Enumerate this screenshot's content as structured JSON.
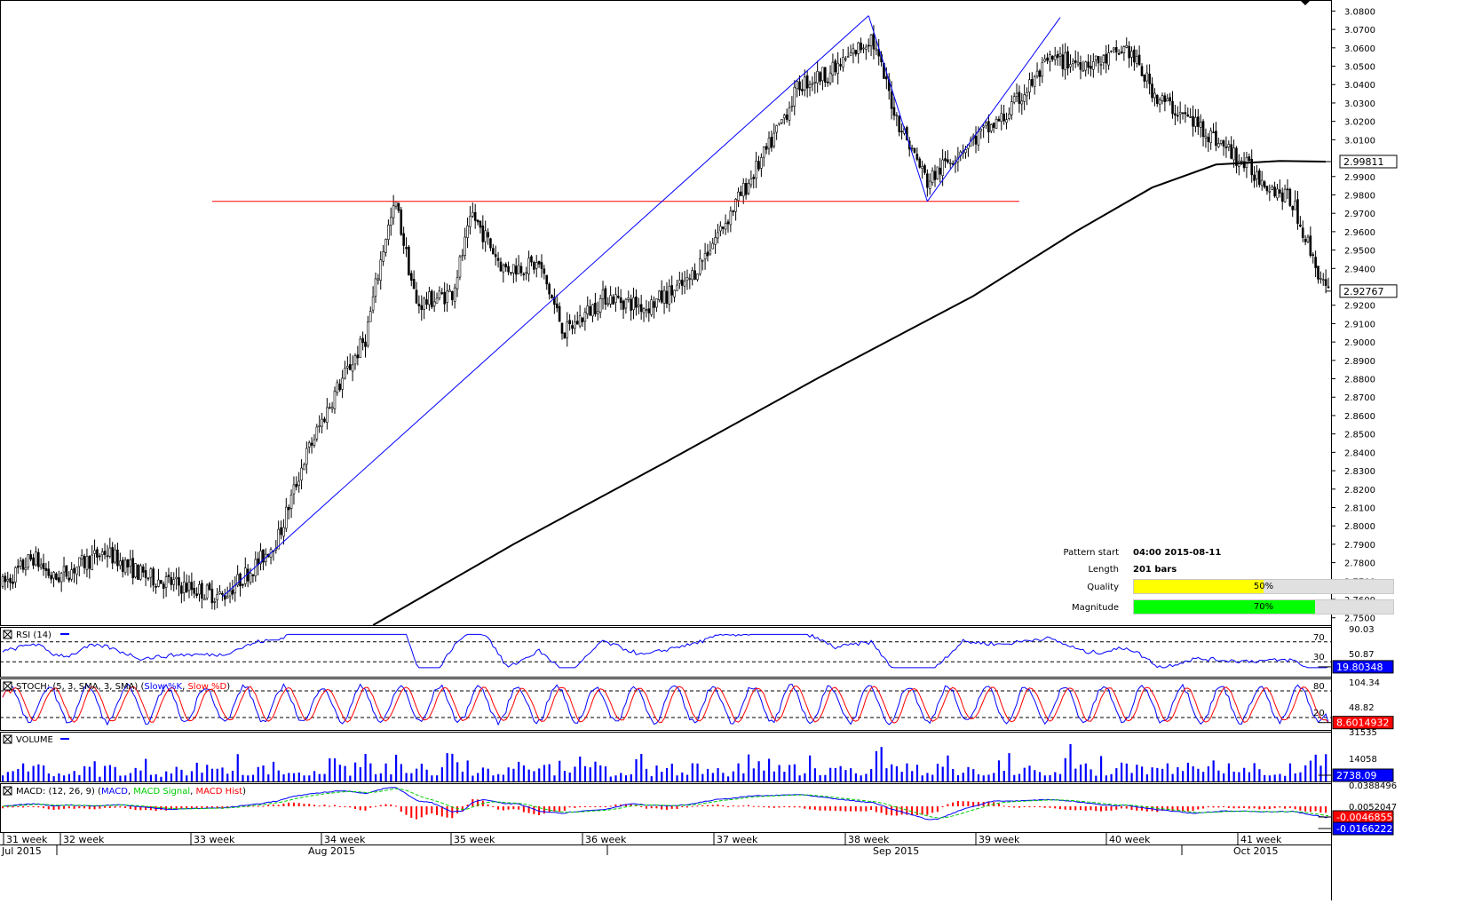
{
  "chart_data": {
    "type": "candlestick",
    "price_axis": {
      "ticks": [
        "3.0800",
        "3.0700",
        "3.0600",
        "3.0500",
        "3.0400",
        "3.0300",
        "3.0200",
        "3.0100",
        "2.9900",
        "2.9800",
        "2.9700",
        "2.9600",
        "2.9500",
        "2.9400",
        "2.9200",
        "2.9100",
        "2.9000",
        "2.8900",
        "2.8800",
        "2.8700",
        "2.8600",
        "2.8500",
        "2.8400",
        "2.8300",
        "2.8200",
        "2.8100",
        "2.8000",
        "2.7900",
        "2.7800",
        "2.7700",
        "2.7600",
        "2.7500"
      ],
      "range": [
        2.746,
        3.086
      ]
    },
    "price_labels": {
      "ma_value": "2.99811",
      "last_price": "2.92767"
    },
    "resistance_level": 2.9765,
    "pattern_lines": [
      {
        "from": {
          "bar": 86,
          "price": 2.7615
        },
        "to": {
          "bar": 339,
          "price": 3.0775
        }
      },
      {
        "from": {
          "bar": 339,
          "price": 3.0775
        },
        "to": {
          "bar": 362,
          "price": 2.9765
        }
      },
      {
        "from": {
          "bar": 362,
          "price": 2.9765
        },
        "to": {
          "bar": 414,
          "price": 3.0765
        }
      }
    ],
    "moving_average_points": [
      {
        "bar": 145,
        "price": 2.746
      },
      {
        "bar": 200,
        "price": 2.79
      },
      {
        "bar": 260,
        "price": 2.835
      },
      {
        "bar": 320,
        "price": 2.881
      },
      {
        "bar": 380,
        "price": 2.925
      },
      {
        "bar": 420,
        "price": 2.96
      },
      {
        "bar": 450,
        "price": 2.984
      },
      {
        "bar": 475,
        "price": 2.9965
      },
      {
        "bar": 500,
        "price": 2.9985
      },
      {
        "bar": 518,
        "price": 2.9981
      }
    ],
    "week_labels": [
      "31 week",
      "32 week",
      "33 week",
      "34 week",
      "35 week",
      "36 week",
      "37 week",
      "38 week",
      "39 week",
      "40 week",
      "41 week"
    ],
    "month_labels": [
      "Jul 2015",
      "Aug 2015",
      "Sep 2015",
      "Oct 2015"
    ],
    "rsi": {
      "title": "RSI (14)",
      "levels": [
        "70",
        "30"
      ],
      "axis_labels": [
        "90.03",
        "50.87"
      ],
      "value": "19.80348"
    },
    "stoch": {
      "title_prefix": "STOCH: (5, 3, SMA, 3, SMA) (",
      "k_name": "Slow %K",
      "separator": ", ",
      "d_name": "Slow %D",
      "title_suffix": ")",
      "levels": [
        "80",
        "20"
      ],
      "axis_labels": [
        "104.34",
        "48.82"
      ],
      "value": "8.6014932"
    },
    "volume": {
      "title": "VOLUME",
      "axis_labels": [
        "31535",
        "14058"
      ],
      "value": "2738.09"
    },
    "macd": {
      "title_prefix": "MACD: (12, 26, 9) (",
      "macd_name": "MACD",
      "separator": ", ",
      "signal_name": "MACD Signal",
      "hist_name": "MACD Hist",
      "title_suffix": ")",
      "axis_labels": [
        "0.0388496",
        "0.0052047"
      ],
      "value_hist": "-0.0046855",
      "value_macd": "-0.0166222"
    },
    "colors": {
      "candle": "#000000",
      "resistance": "#ff0000",
      "pattern": "#0000ff",
      "ma": "#000000",
      "rsi": "#0000ff",
      "stoch_k": "#0000ff",
      "stoch_d": "#ff0000",
      "volume": "#0000ff",
      "macd": "#0000ff",
      "macd_signal": "#00cc00",
      "macd_hist": "#ff0000"
    }
  },
  "pattern_info": {
    "start_label": "Pattern start",
    "start_value": "04:00 2015-08-11",
    "length_label": "Length",
    "length_value": "201 bars",
    "quality_label": "Quality",
    "quality_text": "50%",
    "quality_fraction": 0.5,
    "quality_color": "#ffff00",
    "magnitude_label": "Magnitude",
    "magnitude_text": "70%",
    "magnitude_fraction": 0.7,
    "magnitude_color": "#00ff00"
  }
}
